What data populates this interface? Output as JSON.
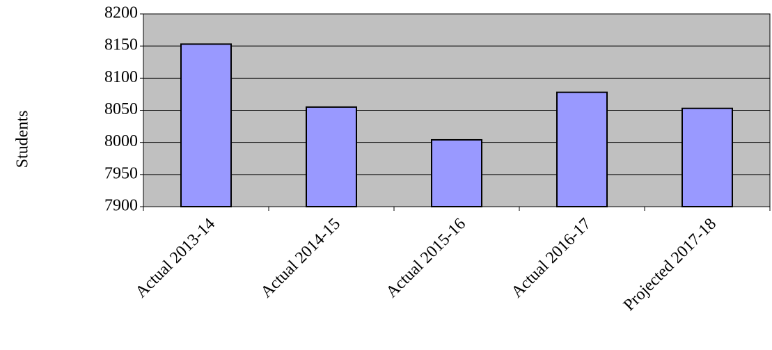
{
  "chart_data": {
    "type": "bar",
    "y_label": "Students",
    "categories": [
      "Actual 2013-14",
      "Actual 2014-15",
      "Actual 2015-16",
      "Actual 2016-17",
      "Projected 2017-18"
    ],
    "values": [
      8153,
      8055,
      8004,
      8078,
      8053
    ],
    "color": "#9999ff",
    "background": "#c0c0c0",
    "ylim": [
      7900,
      8200
    ],
    "yticks": [
      7900,
      7950,
      8000,
      8050,
      8100,
      8150,
      8200
    ],
    "grid": true
  }
}
